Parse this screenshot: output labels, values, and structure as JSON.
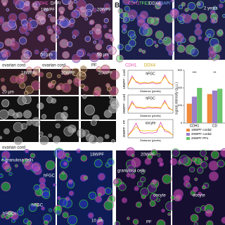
{
  "panel_a": {
    "stain": [
      "CDH1",
      "DAPI"
    ],
    "images": [
      "18WPF",
      "20WPF"
    ],
    "scale": "50 µm"
  },
  "panel_b": {
    "letter": "B",
    "stain": [
      "CDH1",
      "TFE3",
      "DDX4",
      "DAPI"
    ],
    "age": "2 years"
  },
  "panel_c": {
    "headers": [
      "ovarian cord",
      "ovarian cord",
      "PF"
    ],
    "ages": [
      "18WPF",
      "20WPF",
      "20WPF"
    ],
    "scale": "20 µm"
  },
  "profiles": {
    "xlabel": "Distance (pixels)",
    "legend": [
      "CDH1",
      "DDX4"
    ],
    "ylim": [
      0,
      100
    ],
    "plots": [
      {
        "label": "18WPF - cord",
        "feature": "hFGC",
        "series": [
          {
            "color": "#e04fa8",
            "values": [
              20,
              70,
              35,
              25,
              30,
              28,
              32,
              26,
              30,
              75,
              30,
              20
            ]
          },
          {
            "color": "#f2c200",
            "values": [
              15,
              60,
              40,
              30,
              35,
              30,
              38,
              30,
              34,
              65,
              35,
              15
            ]
          }
        ]
      },
      {
        "label": "20WPF - cord",
        "feature": "hFGC",
        "series": [
          {
            "color": "#e04fa8",
            "values": [
              18,
              65,
              30,
              28,
              25,
              30,
              27,
              29,
              26,
              70,
              25,
              18
            ]
          },
          {
            "color": "#f2c200",
            "values": [
              12,
              55,
              35,
              33,
              30,
              36,
              32,
              34,
              30,
              60,
              30,
              14
            ]
          }
        ]
      },
      {
        "label": "20WPF - PF",
        "feature": "oocyte",
        "series": [
          {
            "color": "#e04fa8",
            "values": [
              15,
              40,
              80,
              30,
              25,
              28,
              26,
              30,
              85,
              35,
              30,
              15
            ]
          },
          {
            "color": "#f2c200",
            "values": [
              10,
              35,
              60,
              40,
              38,
              40,
              37,
              42,
              65,
              45,
              35,
              12
            ]
          }
        ]
      }
    ]
  },
  "bar_chart": {
    "type": "bar",
    "ylabel": "signal intensity (a.u.)",
    "categories": [
      "CDH1",
      "CD"
    ],
    "ylim": [
      0,
      300
    ],
    "yticks": [
      0,
      100,
      200,
      300
    ],
    "signif": [
      "***",
      "**"
    ],
    "series": [
      {
        "name": "18WPF cordal",
        "color": "#f08a3c",
        "values": [
          110,
          165
        ]
      },
      {
        "name": "20WPF cordal",
        "color": "#9b7fc8",
        "values": [
          150,
          185
        ]
      },
      {
        "name": "20WPF PFs",
        "color": "#6cc46c",
        "values": [
          200,
          195
        ]
      }
    ]
  },
  "panel_d": {
    "header": "ovarian cord",
    "age": "18WPF",
    "labels": [
      "e-granulosa cells",
      "hFGC",
      "hFGC",
      "hFGCs"
    ],
    "scale": "10 µm"
  },
  "panel_e": {
    "age": "20WPF",
    "labels": [
      "granulosa cells",
      "oocyte",
      "oocyte",
      "PF"
    ],
    "scale": "10 µm"
  }
}
